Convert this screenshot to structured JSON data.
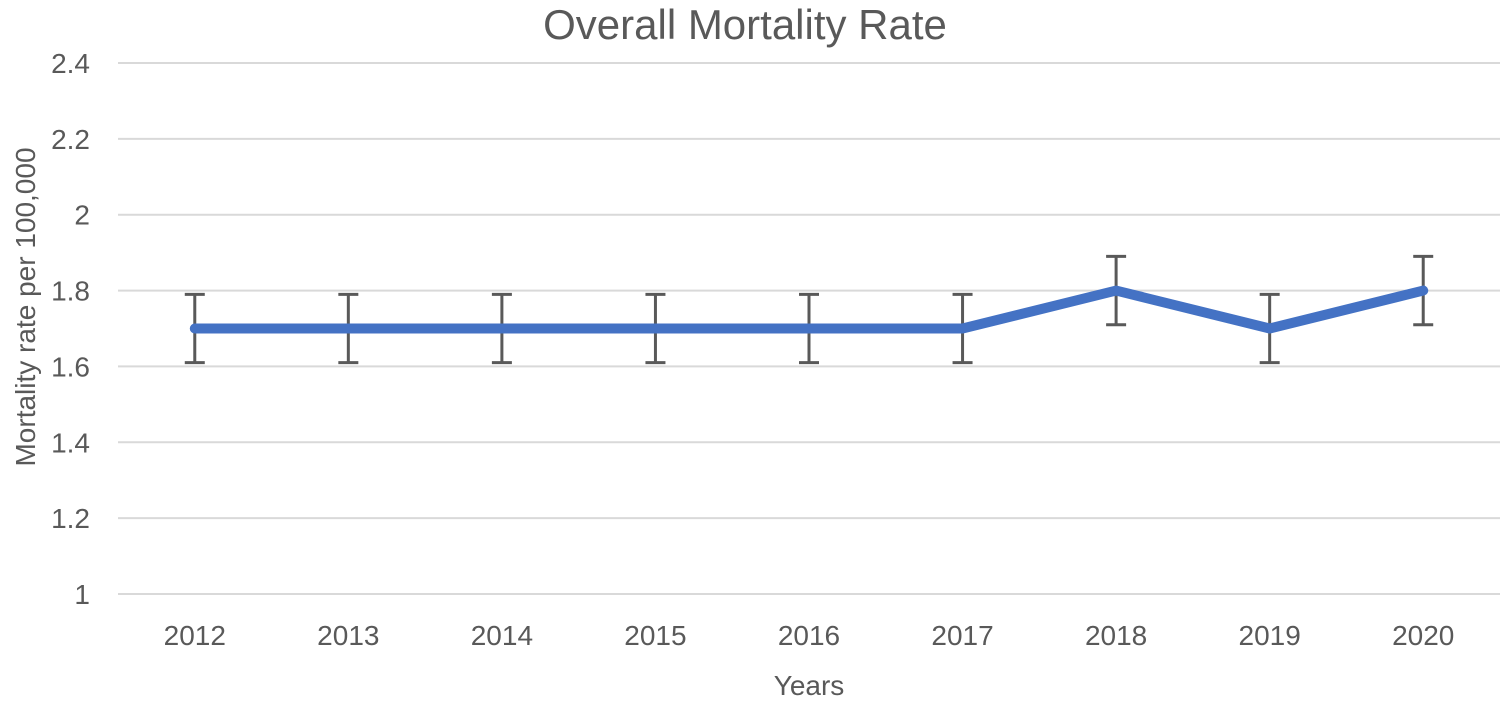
{
  "chart_data": {
    "type": "line",
    "title": "Overall Mortality Rate",
    "xlabel": "Years",
    "ylabel": "Mortality rate per 100,000",
    "categories": [
      "2012",
      "2013",
      "2014",
      "2015",
      "2016",
      "2017",
      "2018",
      "2019",
      "2020"
    ],
    "values": [
      1.7,
      1.7,
      1.7,
      1.7,
      1.7,
      1.7,
      1.8,
      1.7,
      1.8
    ],
    "error_bar_magnitude": 0.09,
    "ylim": [
      1,
      2.4
    ],
    "ytick_step": 0.2,
    "ytick_labels": [
      "1",
      "1.2",
      "1.4",
      "1.6",
      "1.8",
      "2",
      "2.2",
      "2.4"
    ],
    "grid": true,
    "legend": "none",
    "colors": {
      "line": "#4472C4",
      "error_bar": "#595959",
      "gridline": "#D9D9D9",
      "text": "#595959",
      "background": "#FFFFFF"
    }
  }
}
